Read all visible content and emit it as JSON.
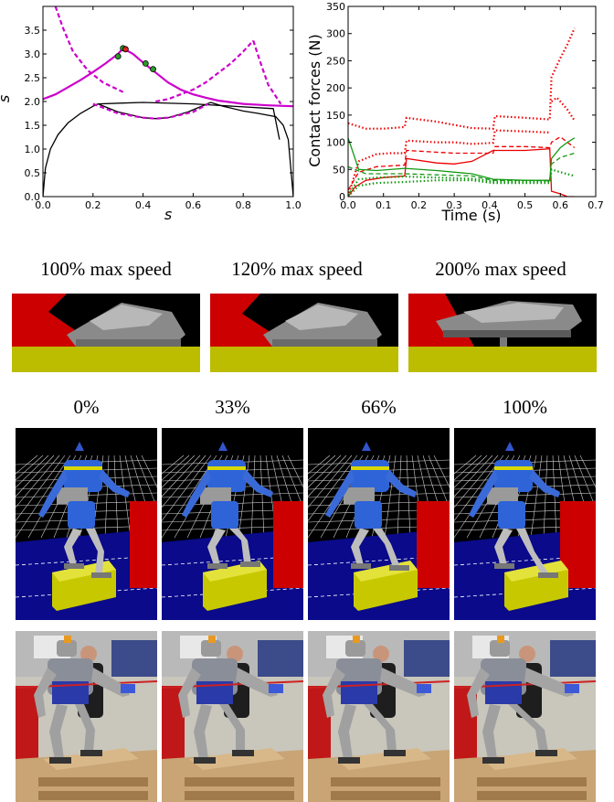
{
  "chart_data": [
    {
      "type": "line",
      "xlabel": "s",
      "ylabel": "ṡ",
      "xlim": [
        0,
        1.0
      ],
      "ylim": [
        0,
        4.0
      ],
      "xticks": [
        "0.0",
        "0.2",
        "0.4",
        "0.6",
        "0.8",
        "1.0"
      ],
      "yticks": [
        "0.0",
        "0.5",
        "1.0",
        "1.5",
        "2.0",
        "2.5",
        "3.0",
        "3.5"
      ],
      "grid": false,
      "series": [
        {
          "style": "solid",
          "color": "#000000",
          "x": [
            0.0,
            0.01,
            0.03,
            0.06,
            0.1,
            0.15,
            0.2,
            0.22
          ],
          "y": [
            0.0,
            0.6,
            1.0,
            1.3,
            1.55,
            1.75,
            1.9,
            1.95
          ]
        },
        {
          "style": "solid",
          "color": "#000000",
          "x": [
            0.22,
            0.3,
            0.4,
            0.45,
            0.5,
            0.58,
            0.67
          ],
          "y": [
            1.95,
            1.78,
            1.66,
            1.64,
            1.66,
            1.78,
            1.98
          ]
        },
        {
          "style": "solid",
          "color": "#000000",
          "x": [
            0.67,
            0.72,
            0.8,
            0.86,
            0.93,
            0.96,
            0.98,
            1.0
          ],
          "y": [
            1.98,
            1.9,
            1.8,
            1.75,
            1.68,
            1.5,
            1.2,
            0.0
          ]
        },
        {
          "style": "solid",
          "color": "#000000",
          "x": [
            0.22,
            0.4,
            0.6,
            0.92,
            0.945
          ],
          "y": [
            1.95,
            1.98,
            1.95,
            1.85,
            1.2
          ]
        },
        {
          "style": "solid",
          "color": "#cc00cc",
          "x": [
            0.0,
            0.05,
            0.1,
            0.15,
            0.2,
            0.25,
            0.3,
            0.32
          ],
          "y": [
            2.05,
            2.15,
            2.3,
            2.45,
            2.62,
            2.8,
            3.0,
            3.12
          ]
        },
        {
          "style": "solid",
          "color": "#cc00cc",
          "x": [
            0.32,
            0.36,
            0.4,
            0.44,
            0.5,
            0.55,
            0.6,
            0.65,
            0.7,
            0.8,
            0.9,
            1.0
          ],
          "y": [
            3.12,
            3.0,
            2.82,
            2.65,
            2.4,
            2.25,
            2.15,
            2.08,
            2.02,
            1.95,
            1.92,
            1.9
          ]
        },
        {
          "style": "dashed",
          "color": "#cc00cc",
          "x": [
            0.05,
            0.08,
            0.12,
            0.18,
            0.24,
            0.3,
            0.32
          ],
          "y": [
            4.0,
            3.55,
            3.05,
            2.65,
            2.4,
            2.25,
            2.2
          ]
        },
        {
          "style": "dashed",
          "color": "#cc00cc",
          "x": [
            0.45,
            0.5,
            0.55,
            0.6,
            0.65,
            0.7,
            0.75,
            0.8,
            0.84
          ],
          "y": [
            2.0,
            2.05,
            2.15,
            2.25,
            2.4,
            2.6,
            2.8,
            3.05,
            3.28
          ]
        },
        {
          "style": "dashed",
          "color": "#cc00cc",
          "x": [
            0.84,
            0.87,
            0.9,
            0.95
          ],
          "y": [
            3.28,
            2.8,
            2.35,
            1.95
          ]
        },
        {
          "style": "dashed",
          "color": "#cc00cc",
          "x": [
            0.2,
            0.3,
            0.4,
            0.45,
            0.5,
            0.6,
            0.66
          ],
          "y": [
            1.95,
            1.75,
            1.66,
            1.64,
            1.66,
            1.78,
            1.95
          ]
        }
      ],
      "markers": [
        {
          "x": 0.3,
          "y": 2.95,
          "color": "#2a9a2a"
        },
        {
          "x": 0.32,
          "y": 3.12,
          "color": "#2a9a2a"
        },
        {
          "x": 0.33,
          "y": 3.1,
          "color": "#dd2222"
        },
        {
          "x": 0.41,
          "y": 2.8,
          "color": "#2a9a2a"
        },
        {
          "x": 0.44,
          "y": 2.68,
          "color": "#2a9a2a"
        }
      ]
    },
    {
      "type": "line",
      "xlabel": "Time (s)",
      "ylabel": "Contact forces (N)",
      "xlim": [
        0,
        0.7
      ],
      "ylim": [
        0,
        350
      ],
      "xticks": [
        "0.0",
        "0.1",
        "0.2",
        "0.3",
        "0.4",
        "0.5",
        "0.6",
        "0.7"
      ],
      "yticks": [
        "0",
        "50",
        "100",
        "150",
        "200",
        "250",
        "300",
        "350"
      ],
      "grid": false,
      "series": [
        {
          "style": "solid",
          "color": "#ee0000",
          "x": [
            0.0,
            0.02,
            0.05,
            0.1,
            0.16,
            0.165,
            0.25,
            0.3,
            0.35,
            0.41,
            0.415,
            0.5,
            0.57,
            0.575,
            0.6,
            0.62,
            0.64
          ],
          "y": [
            0,
            18,
            30,
            35,
            38,
            70,
            62,
            60,
            65,
            85,
            85,
            85,
            88,
            10,
            5,
            0,
            0
          ]
        },
        {
          "style": "dashed",
          "color": "#ee0000",
          "x": [
            0.0,
            0.03,
            0.08,
            0.16,
            0.165,
            0.3,
            0.41,
            0.415,
            0.5,
            0.57,
            0.575,
            0.6,
            0.62,
            0.64
          ],
          "y": [
            12,
            45,
            55,
            58,
            85,
            80,
            80,
            92,
            92,
            90,
            100,
            110,
            100,
            90
          ]
        },
        {
          "style": "dotted",
          "color": "#ee0000",
          "x": [
            0.0,
            0.03,
            0.08,
            0.12,
            0.16,
            0.165,
            0.25,
            0.3,
            0.35,
            0.41,
            0.415,
            0.5,
            0.57
          ],
          "y": [
            0,
            65,
            78,
            80,
            80,
            103,
            100,
            100,
            97,
            99,
            122,
            120,
            118
          ]
        },
        {
          "style": "dotted",
          "color": "#ee0000",
          "x": [
            0.575,
            0.59,
            0.6,
            0.62,
            0.64
          ],
          "y": [
            175,
            182,
            175,
            160,
            140
          ]
        },
        {
          "style": "dotted",
          "color": "#ee0000",
          "x": [
            0.0,
            0.05,
            0.1,
            0.16,
            0.165,
            0.25,
            0.3,
            0.35,
            0.41,
            0.415,
            0.5,
            0.57,
            0.575,
            0.6,
            0.62,
            0.64
          ],
          "y": [
            135,
            125,
            125,
            128,
            145,
            138,
            132,
            126,
            125,
            148,
            145,
            142,
            220,
            255,
            280,
            310
          ]
        },
        {
          "style": "solid",
          "color": "#119911",
          "x": [
            0.0,
            0.03,
            0.08,
            0.16,
            0.25,
            0.35,
            0.41,
            0.5,
            0.57,
            0.575,
            0.6,
            0.62,
            0.64
          ],
          "y": [
            108,
            50,
            48,
            52,
            48,
            42,
            32,
            30,
            30,
            70,
            90,
            100,
            108
          ]
        },
        {
          "style": "dashed",
          "color": "#119911",
          "x": [
            0.0,
            0.05,
            0.1,
            0.16,
            0.25,
            0.35,
            0.41,
            0.5,
            0.57,
            0.575,
            0.6,
            0.64
          ],
          "y": [
            55,
            42,
            42,
            42,
            40,
            38,
            30,
            30,
            29,
            60,
            72,
            80
          ]
        },
        {
          "style": "dotted",
          "color": "#119911",
          "x": [
            0.0,
            0.03,
            0.08,
            0.16,
            0.25,
            0.35,
            0.41,
            0.5,
            0.57,
            0.575,
            0.6,
            0.64
          ],
          "y": [
            0,
            20,
            25,
            27,
            30,
            30,
            25,
            25,
            25,
            50,
            45,
            38
          ]
        },
        {
          "style": "dotted",
          "color": "#119911",
          "x": [
            0.0,
            0.03,
            0.08,
            0.16,
            0.25,
            0.35,
            0.41,
            0.5,
            0.57
          ],
          "y": [
            3,
            32,
            35,
            37,
            35,
            33,
            28,
            28,
            28
          ]
        }
      ]
    }
  ],
  "speed_captions": [
    "100% max speed",
    "120% max speed",
    "200% max speed"
  ],
  "progress_captions": [
    "0%",
    "33%",
    "66%",
    "100%"
  ],
  "colors": {
    "magenta": "#cc00cc",
    "red": "#ee0000",
    "green": "#119911",
    "floor_yellow": "#bcbc00",
    "sim_blue": "#0a0a8a",
    "wall_red": "#cc0000"
  }
}
